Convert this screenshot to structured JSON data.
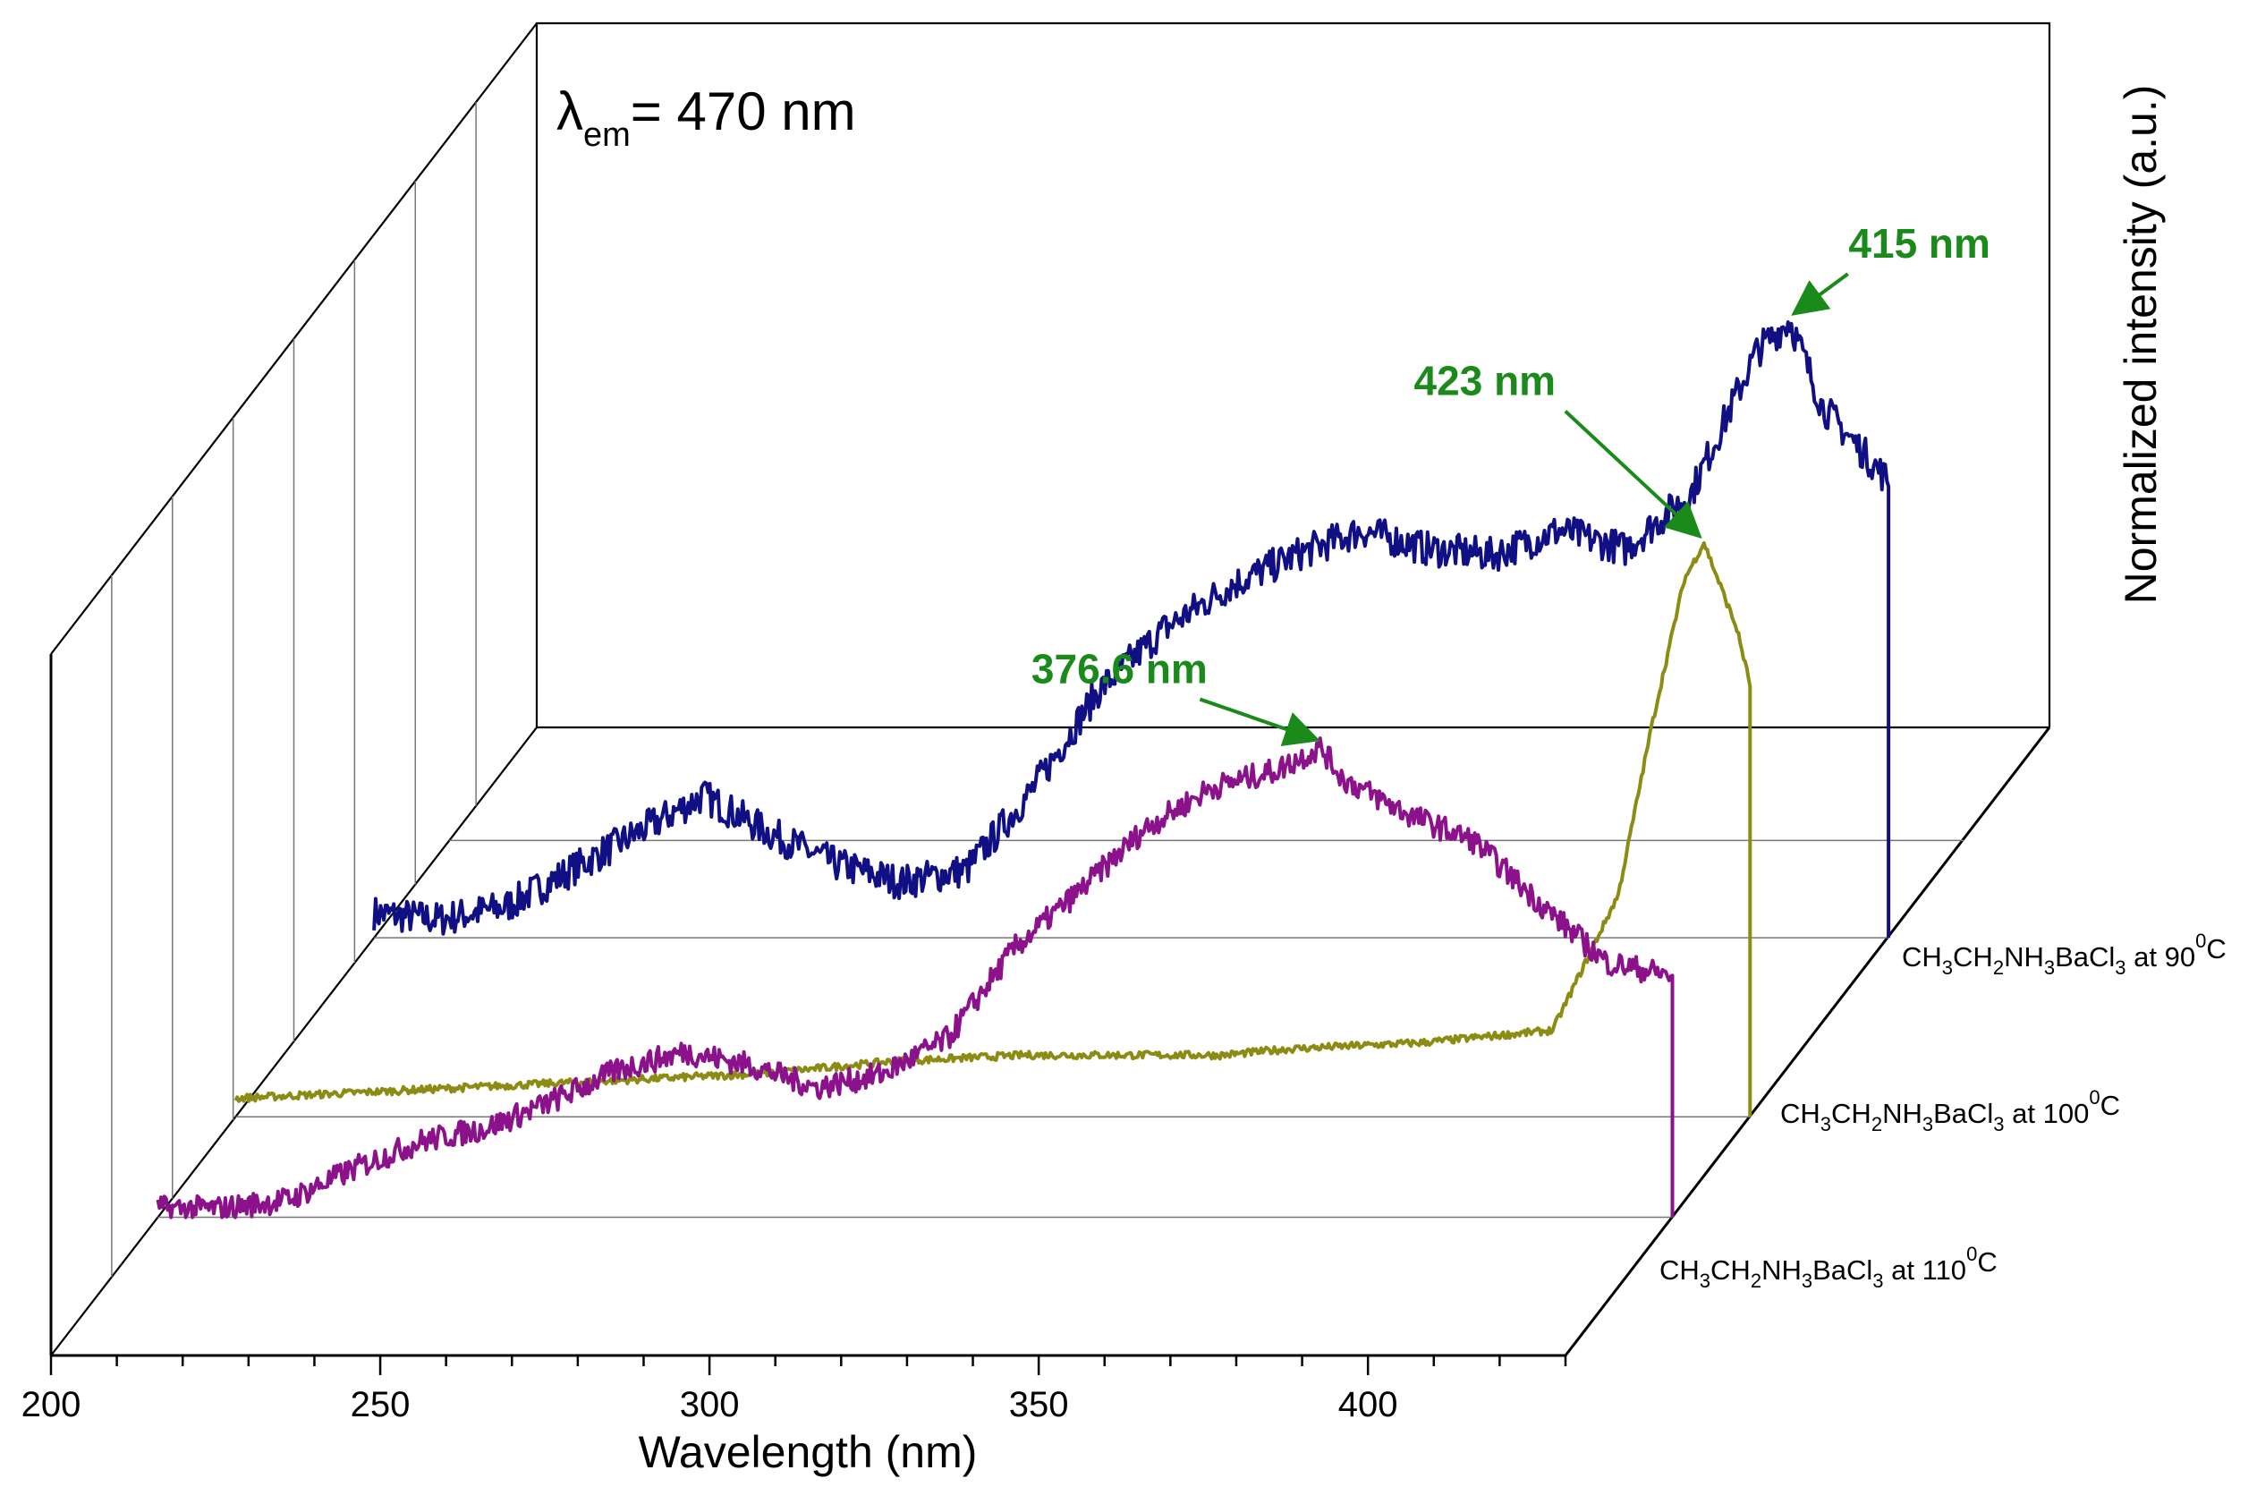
{
  "chart_data": {
    "type": "line",
    "subtype": "3d-waterfall",
    "title": "",
    "annotation_main": {
      "symbol": "λ",
      "subscript": "em",
      "rest": "= 470 nm"
    },
    "xlabel": "Wavelength (nm)",
    "ylabel": "Normalized intensity (a.u.)",
    "xlim": [
      200,
      430
    ],
    "ylim": [
      0,
      1
    ],
    "xticks": [
      "200",
      "250",
      "300",
      "350",
      "400"
    ],
    "colors": {
      "ba90": "#101084",
      "ba100": "#8c8c14",
      "ba110": "#8c128c",
      "annotation": "#1a8a1a"
    },
    "series": [
      {
        "name": "CH3CH2NH3BaCl3 at 90°C",
        "label_parts": [
          "CH",
          "3",
          "CH",
          "2",
          "NH",
          "3",
          "BaCl",
          "3",
          " at 90",
          "0",
          "C"
        ],
        "color_key": "ba90",
        "x": [
          200,
          210,
          220,
          230,
          240,
          250,
          260,
          270,
          280,
          290,
          300,
          310,
          320,
          330,
          340,
          350,
          360,
          370,
          380,
          390,
          400,
          410,
          415,
          420,
          430
        ],
        "values": [
          0.04,
          0.03,
          0.05,
          0.11,
          0.17,
          0.23,
          0.17,
          0.12,
          0.09,
          0.11,
          0.24,
          0.4,
          0.5,
          0.57,
          0.62,
          0.66,
          0.63,
          0.62,
          0.66,
          0.63,
          0.72,
          0.95,
          1.0,
          0.86,
          0.74
        ],
        "peak_annotation": {
          "text": "415 nm",
          "x": 415
        }
      },
      {
        "name": "CH3CH2NH3BaCl3 at 100°C",
        "label_parts": [
          "CH",
          "3",
          "CH",
          "2",
          "NH",
          "3",
          "BaCl",
          "3",
          " at 100",
          "0",
          "C"
        ],
        "color_key": "ba100",
        "x": [
          200,
          220,
          240,
          260,
          280,
          300,
          320,
          340,
          350,
          360,
          380,
          400,
          410,
          415,
          420,
          423,
          428,
          430
        ],
        "values": [
          0.03,
          0.04,
          0.05,
          0.06,
          0.07,
          0.09,
          0.1,
          0.1,
          0.1,
          0.11,
          0.12,
          0.14,
          0.36,
          0.63,
          0.87,
          0.93,
          0.79,
          0.7
        ],
        "peak_annotation": {
          "text": "423 nm",
          "x": 423
        }
      },
      {
        "name": "CH3CH2NH3BaCl3 at 110°C",
        "label_parts": [
          "CH",
          "3",
          "CH",
          "2",
          "NH",
          "3",
          "BaCl",
          "3",
          " at 110",
          "0",
          "C"
        ],
        "color_key": "ba110",
        "x": [
          200,
          210,
          220,
          230,
          240,
          250,
          260,
          270,
          280,
          290,
          300,
          310,
          320,
          330,
          340,
          350,
          360,
          370,
          376.6,
          380,
          390,
          400,
          410,
          420,
          430
        ],
        "values": [
          0.02,
          0.02,
          0.04,
          0.11,
          0.17,
          0.2,
          0.26,
          0.33,
          0.37,
          0.34,
          0.29,
          0.32,
          0.4,
          0.6,
          0.73,
          0.87,
          0.96,
          1.0,
          1.05,
          0.98,
          0.9,
          0.84,
          0.7,
          0.57,
          0.54
        ],
        "peak_annotation": {
          "text": "376.6 nm",
          "x": 376.6
        }
      }
    ]
  }
}
